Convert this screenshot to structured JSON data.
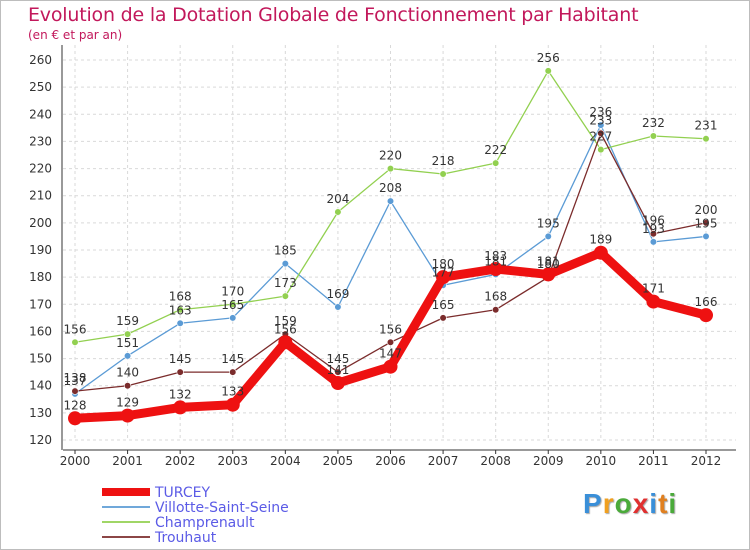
{
  "header": {
    "title": "Evolution de la Dotation Globale de Fonctionnement par Habitant",
    "subtitle": "(en € et par an)"
  },
  "logo": {
    "text": "Proxiti",
    "colors": [
      "#3a8fd8",
      "#f0a020",
      "#4aaa3a",
      "#e03030",
      "#3a8fd8",
      "#e08020",
      "#4aaa3a"
    ]
  },
  "chart_data": {
    "type": "line",
    "title": "Evolution de la Dotation Globale de Fonctionnement par Habitant",
    "subtitle": "(en € et par an)",
    "xlabel": "",
    "ylabel": "",
    "categories": [
      "2000",
      "2001",
      "2002",
      "2003",
      "2004",
      "2005",
      "2006",
      "2007",
      "2008",
      "2009",
      "2010",
      "2011",
      "2012"
    ],
    "ylim": [
      120,
      260
    ],
    "yticks": [
      120,
      130,
      140,
      150,
      160,
      170,
      180,
      190,
      200,
      210,
      220,
      230,
      240,
      250,
      260
    ],
    "grid": true,
    "legend_position": "bottom-left",
    "series": [
      {
        "name": "Villotte-Saint-Seine",
        "color": "#5b9bd5",
        "thick": false,
        "values": [
          137,
          151,
          163,
          165,
          185,
          169,
          208,
          177,
          181,
          195,
          236,
          193,
          195
        ]
      },
      {
        "name": "Champrenault",
        "color": "#92d050",
        "thick": false,
        "values": [
          156,
          159,
          168,
          170,
          173,
          204,
          220,
          218,
          222,
          256,
          227,
          232,
          231
        ]
      },
      {
        "name": "Trouhaut",
        "color": "#7b2c2c",
        "thick": false,
        "values": [
          138,
          140,
          145,
          145,
          159,
          145,
          156,
          165,
          168,
          180,
          233,
          196,
          200
        ]
      },
      {
        "name": "TURCEY",
        "color": "#ee1111",
        "thick": true,
        "values": [
          128,
          129,
          132,
          133,
          156,
          141,
          147,
          180,
          183,
          181,
          189,
          171,
          166
        ]
      }
    ],
    "legend_order": [
      "TURCEY",
      "Villotte-Saint-Seine",
      "Champrenault",
      "Trouhaut"
    ]
  }
}
